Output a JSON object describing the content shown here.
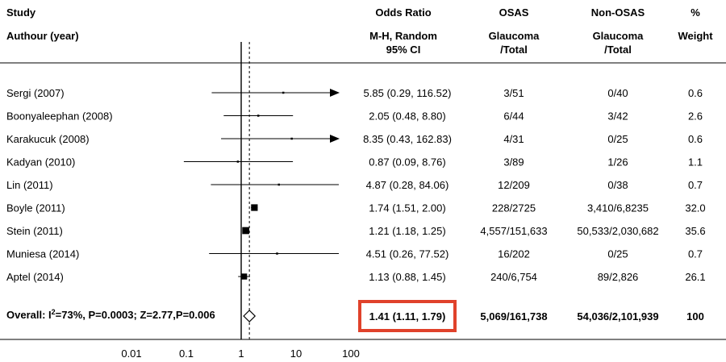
{
  "headers": {
    "study": "Study",
    "author_year": "Authour (year)",
    "or_line1": "Odds Ratio",
    "or_line2": "M-H, Random",
    "or_line3": "95% CI",
    "osas_line1": "OSAS",
    "osas_line2": "Glaucoma",
    "osas_line3": "/Total",
    "nonosas_line1": "Non-OSAS",
    "nonosas_line2": "Glaucoma",
    "nonosas_line3": "/Total",
    "pct_line1": "%",
    "pct_line2": "Weight"
  },
  "highlight_color": "#e0422b",
  "chart_data": {
    "type": "forest",
    "x_scale": "log",
    "xlim": [
      0.01,
      100
    ],
    "x_ticks": [
      "0.01",
      "0.1",
      "1",
      "10",
      "100"
    ],
    "x_tick_values": [
      0.01,
      0.1,
      1,
      10,
      100
    ],
    "null_line": 1,
    "pooled_reference": 1.41,
    "studies": [
      {
        "label": "Sergi (2007)",
        "or": 5.85,
        "lo": 0.29,
        "hi": 116.52,
        "ci_text": "5.85 (0.29, 116.52)",
        "osas": "3/51",
        "non_osas": "0/40",
        "weight": "0.6",
        "weight_value": 0.6,
        "arrow_right": true
      },
      {
        "label": "Boonyaleephan (2008)",
        "or": 2.05,
        "lo": 0.48,
        "hi": 8.8,
        "ci_text": "2.05 (0.48, 8.80)",
        "osas": "6/44",
        "non_osas": "3/42",
        "weight": "2.6",
        "weight_value": 2.6,
        "arrow_right": false
      },
      {
        "label": "Karakucuk (2008)",
        "or": 8.35,
        "lo": 0.43,
        "hi": 162.83,
        "ci_text": "8.35 (0.43, 162.83)",
        "osas": "4/31",
        "non_osas": "0/25",
        "weight": "0.6",
        "weight_value": 0.6,
        "arrow_right": true
      },
      {
        "label": "Kadyan (2010)",
        "or": 0.87,
        "lo": 0.09,
        "hi": 8.76,
        "ci_text": "0.87 (0.09, 8.76)",
        "osas": "3/89",
        "non_osas": "1/26",
        "weight": "1.1",
        "weight_value": 1.1,
        "arrow_right": false
      },
      {
        "label": "Lin (2011)",
        "or": 4.87,
        "lo": 0.28,
        "hi": 84.06,
        "ci_text": "4.87 (0.28, 84.06)",
        "osas": "12/209",
        "non_osas": "0/38",
        "weight": "0.7",
        "weight_value": 0.7,
        "arrow_right": false
      },
      {
        "label": "Boyle (2011)",
        "or": 1.74,
        "lo": 1.51,
        "hi": 2.0,
        "ci_text": "1.74 (1.51, 2.00)",
        "osas": "228/2725",
        "non_osas": "3,410/6,8235",
        "weight": "32.0",
        "weight_value": 32.0,
        "arrow_right": false
      },
      {
        "label": "Stein (2011)",
        "or": 1.21,
        "lo": 1.18,
        "hi": 1.25,
        "ci_text": "1.21 (1.18, 1.25)",
        "osas": "4,557/151,633",
        "non_osas": "50,533/2,030,682",
        "weight": "35.6",
        "weight_value": 35.6,
        "arrow_right": false
      },
      {
        "label": "Muniesa (2014)",
        "or": 4.51,
        "lo": 0.26,
        "hi": 77.52,
        "ci_text": "4.51 (0.26, 77.52)",
        "osas": "16/202",
        "non_osas": "0/25",
        "weight": "0.7",
        "weight_value": 0.7,
        "arrow_right": false
      },
      {
        "label": "Aptel (2014)",
        "or": 1.13,
        "lo": 0.88,
        "hi": 1.45,
        "ci_text": "1.13 (0.88, 1.45)",
        "osas": "240/6,754",
        "non_osas": "89/2,826",
        "weight": "26.1",
        "weight_value": 26.1,
        "arrow_right": false
      }
    ],
    "overall": {
      "label_prefix": "Overall: I",
      "label_sup": "2",
      "label_suffix": "=73%, P=0.0003;  Z=2.77,P=0.006",
      "or": 1.41,
      "lo": 1.11,
      "hi": 1.79,
      "ci_text": "1.41 (1.11, 1.79)",
      "osas": "5,069/161,738",
      "non_osas": "54,036/2,101,939",
      "weight": "100"
    }
  }
}
